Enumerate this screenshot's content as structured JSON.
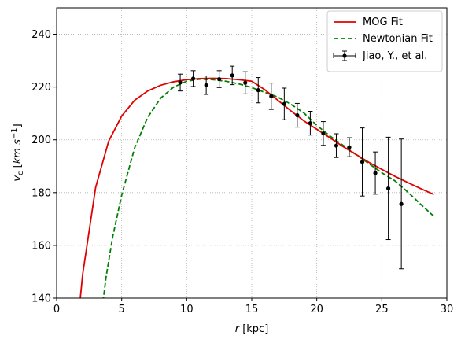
{
  "chart_data": {
    "type": "line",
    "xlabel": "r [kpc]",
    "ylabel": "v_c [km s^-1]",
    "xlim": [
      0,
      30
    ],
    "ylim": [
      140,
      250
    ],
    "xticks": [
      0,
      5,
      10,
      15,
      20,
      25,
      30
    ],
    "yticks": [
      140,
      160,
      180,
      200,
      220,
      240
    ],
    "grid": true,
    "legend_position": "top-right",
    "colors": {
      "mog": "#e00000",
      "newtonian": "#008000",
      "data": "#000000"
    },
    "series": [
      {
        "name": "MOG Fit",
        "style": "solid",
        "x": [
          1.5,
          2.0,
          3.0,
          4.0,
          5.0,
          6.0,
          7.0,
          8.0,
          9.0,
          10.0,
          11.0,
          12.0,
          13.0,
          14.0,
          15.0,
          16.0,
          17.0,
          18.0,
          19.0,
          20.0,
          21.0,
          22.0,
          23.0,
          24.0,
          25.0,
          26.0,
          27.0,
          28.0,
          29.0
        ],
        "y": [
          124,
          149,
          182,
          199.5,
          209,
          215,
          218.5,
          220.7,
          222,
          222.8,
          223.2,
          223.3,
          223.2,
          222.8,
          222.2,
          219,
          215,
          211,
          207.2,
          204,
          200.8,
          197.5,
          194.5,
          191.5,
          188.8,
          186.2,
          183.8,
          181.5,
          179.3
        ]
      },
      {
        "name": "Newtonian Fit",
        "style": "dashed",
        "x": [
          3.3,
          3.8,
          4.3,
          5.0,
          6.0,
          7.0,
          8.0,
          9.0,
          10.0,
          11.0,
          12.0,
          13.0,
          14.0,
          15.0,
          16.0,
          17.0,
          18.0,
          19.0,
          20.0,
          21.0,
          22.0,
          23.0,
          24.0,
          25.0,
          26.0,
          27.0,
          28.0,
          29.0
        ],
        "y": [
          128,
          148,
          163,
          179,
          197,
          208.5,
          215.8,
          220,
          222.2,
          223,
          222.8,
          222.2,
          221.2,
          219.8,
          218,
          216.2,
          213.5,
          210.2,
          205.5,
          201.5,
          198,
          194.5,
          191,
          187.5,
          184.5,
          180.2,
          175.5,
          171
        ]
      },
      {
        "name": "Jiao, Y., et al.",
        "style": "errorbar",
        "points": [
          {
            "x": 9.5,
            "y": 221.7,
            "err": 3.2
          },
          {
            "x": 10.5,
            "y": 223.2,
            "err": 3.0
          },
          {
            "x": 11.5,
            "y": 220.7,
            "err": 3.5
          },
          {
            "x": 12.5,
            "y": 223.0,
            "err": 3.2
          },
          {
            "x": 13.5,
            "y": 224.4,
            "err": 3.5
          },
          {
            "x": 14.5,
            "y": 221.6,
            "err": 4.2
          },
          {
            "x": 15.5,
            "y": 218.8,
            "err": 4.8
          },
          {
            "x": 16.5,
            "y": 216.5,
            "err": 5.0
          },
          {
            "x": 17.5,
            "y": 213.6,
            "err": 6.0
          },
          {
            "x": 18.5,
            "y": 209.3,
            "err": 4.5
          },
          {
            "x": 19.5,
            "y": 206.3,
            "err": 4.5
          },
          {
            "x": 20.5,
            "y": 202.4,
            "err": 4.5
          },
          {
            "x": 21.5,
            "y": 197.8,
            "err": 4.5
          },
          {
            "x": 22.5,
            "y": 197.2,
            "err": 3.6
          },
          {
            "x": 23.5,
            "y": 191.6,
            "err": 12.9
          },
          {
            "x": 24.5,
            "y": 187.4,
            "err": 8.0
          },
          {
            "x": 25.5,
            "y": 181.6,
            "err": 19.4
          },
          {
            "x": 26.5,
            "y": 175.7,
            "err": 24.6
          }
        ]
      }
    ]
  }
}
